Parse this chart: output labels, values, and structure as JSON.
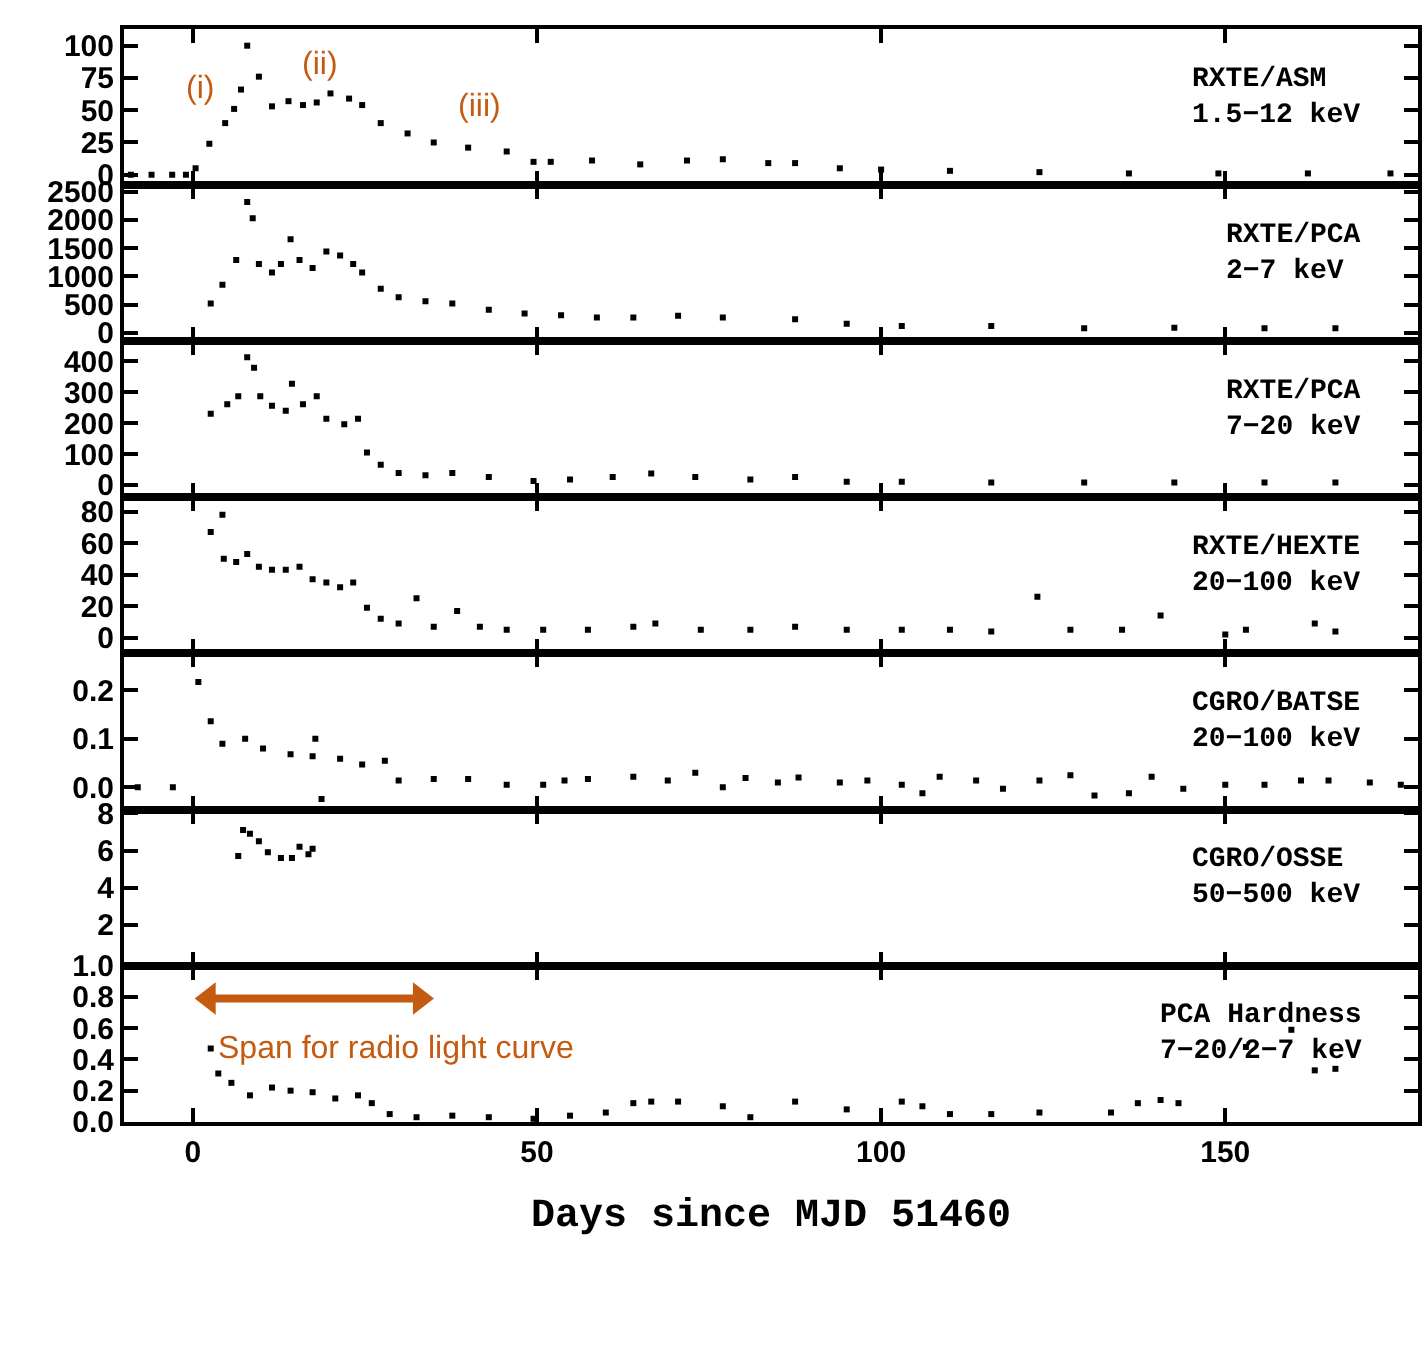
{
  "chart_data": [
    {
      "type": "scatter",
      "title": "RXTE/ASM\n1.5−12 keV",
      "marker": "square",
      "tick_labels": "y",
      "xlim": [
        -10,
        178
      ],
      "xticks": [
        0,
        50,
        100,
        150
      ],
      "ylim": [
        -8,
        113
      ],
      "yticks": [
        0,
        25,
        50,
        75,
        100
      ],
      "annotations": [
        "(i)",
        "(ii)",
        "(iii)"
      ],
      "series": [
        {
          "color": "#000000",
          "x": [
            -9,
            -6,
            -3,
            -1,
            0.4,
            2.4,
            4.7,
            6,
            7,
            7.9,
            9.6,
            11.5,
            13.9,
            16,
            18,
            20,
            22.7,
            24.6,
            27.3,
            31.2,
            35,
            40,
            45.6,
            49.5,
            52,
            58,
            65,
            71.8,
            77,
            83.6,
            87.5,
            94,
            100,
            110,
            123,
            136,
            149,
            162,
            174
          ],
          "values": [
            0,
            0,
            0,
            0,
            5,
            24,
            40,
            51,
            66,
            100,
            76,
            53,
            57,
            54,
            56,
            63,
            59,
            54,
            40,
            32,
            25,
            21,
            18,
            10,
            10,
            11,
            8,
            11,
            12,
            9,
            9,
            5,
            4,
            3,
            2,
            1,
            1,
            1,
            1
          ]
        }
      ]
    },
    {
      "type": "scatter",
      "title": "RXTE/PCA\n2−7 keV",
      "marker": "square",
      "tick_labels": "y",
      "xlim": [
        -10,
        178
      ],
      "xticks": [
        0,
        50,
        100,
        150
      ],
      "ylim": [
        -150,
        2620
      ],
      "yticks": [
        0,
        500,
        1000,
        1500,
        2000,
        2500
      ],
      "series": [
        {
          "color": "#000000",
          "x": [
            2.6,
            4.3,
            6.3,
            7.9,
            8.7,
            9.6,
            11.5,
            12.8,
            14.2,
            15.5,
            17.4,
            19.4,
            21.4,
            23.3,
            24.6,
            27.3,
            29.9,
            33.8,
            37.7,
            43,
            48.2,
            53.5,
            58.7,
            64,
            70.5,
            77,
            87.5,
            95,
            103,
            116,
            129.5,
            142.6,
            155.7,
            166
          ],
          "values": [
            520,
            850,
            1290,
            2320,
            2030,
            1220,
            1070,
            1220,
            1660,
            1290,
            1150,
            1440,
            1370,
            1220,
            1070,
            780,
            630,
            560,
            520,
            410,
            340,
            310,
            270,
            270,
            300,
            270,
            240,
            160,
            120,
            120,
            80,
            90,
            80,
            80
          ]
        }
      ]
    },
    {
      "type": "scatter",
      "title": "RXTE/PCA\n7−20 keV",
      "marker": "square",
      "tick_labels": "y",
      "xlim": [
        -10,
        178
      ],
      "xticks": [
        0,
        50,
        100,
        150
      ],
      "ylim": [
        -40,
        465
      ],
      "yticks": [
        0,
        100,
        200,
        300,
        400
      ],
      "series": [
        {
          "color": "#000000",
          "x": [
            2.6,
            5,
            6.6,
            7.9,
            8.9,
            9.8,
            11.5,
            13.5,
            14.4,
            16,
            18,
            19.4,
            22,
            24,
            25.3,
            27.3,
            29.9,
            33.8,
            37.7,
            43,
            49.5,
            54.8,
            61,
            66.6,
            73,
            81,
            87.5,
            95,
            103,
            116,
            129.5,
            142.6,
            155.7,
            166
          ],
          "values": [
            230,
            261,
            287,
            413,
            379,
            287,
            256,
            240,
            327,
            261,
            287,
            214,
            196,
            214,
            105,
            65,
            39,
            31,
            39,
            26,
            13,
            18,
            26,
            37,
            26,
            18,
            26,
            10,
            10,
            8,
            8,
            8,
            8,
            8
          ]
        }
      ]
    },
    {
      "type": "scatter",
      "title": "RXTE/HEXTE\n20−100 keV",
      "marker": "square",
      "tick_labels": "y",
      "xlim": [
        -10,
        178
      ],
      "xticks": [
        0,
        50,
        100,
        150
      ],
      "ylim": [
        -10,
        89
      ],
      "yticks": [
        0,
        20,
        40,
        60,
        80
      ],
      "series": [
        {
          "color": "#000000",
          "x": [
            2.6,
            4.3,
            4.5,
            6.3,
            7.9,
            9.6,
            11.5,
            13.5,
            15.5,
            17.4,
            19.4,
            21.4,
            23.3,
            25.3,
            27.3,
            29.9,
            32.5,
            35,
            38.4,
            41.7,
            45.6,
            50.9,
            57.4,
            64,
            67.2,
            73.8,
            81,
            87.5,
            95,
            103,
            110,
            116,
            122.7,
            127.5,
            135,
            140.6,
            150,
            153,
            163,
            166
          ],
          "values": [
            67,
            78,
            50,
            48,
            53,
            45,
            43,
            43,
            45,
            37,
            35,
            32,
            35,
            19,
            12,
            9,
            25,
            7,
            17,
            7,
            5,
            5,
            5,
            7,
            9,
            5,
            5,
            7,
            5,
            5,
            5,
            4,
            26,
            5,
            5,
            14,
            2,
            5,
            9,
            4
          ]
        }
      ]
    },
    {
      "type": "scatter",
      "title": "CGRO/BATSE\n20−100 keV",
      "marker": "square",
      "tick_labels": "y",
      "xlim": [
        -10,
        178
      ],
      "xticks": [
        0,
        50,
        100,
        150
      ],
      "ylim": [
        -0.046,
        0.276
      ],
      "yticks": [
        {
          "value": 0,
          "label": "0.0"
        },
        {
          "value": 0.1,
          "label": "0.1"
        },
        {
          "value": 0.2,
          "label": "0.2"
        }
      ],
      "series": [
        {
          "color": "#000000",
          "x": [
            -8,
            -2.9,
            0.8,
            2.6,
            4.3,
            7.6,
            10.2,
            14.2,
            17.4,
            17.8,
            18.7,
            21.4,
            24.6,
            27.9,
            29.9,
            35,
            40,
            45.6,
            50.9,
            54,
            57.4,
            64,
            69,
            73,
            77,
            80.3,
            85,
            88,
            94,
            98,
            103,
            106,
            108.5,
            113.8,
            117.7,
            123,
            127.5,
            131,
            136,
            139.3,
            143.9,
            150,
            155.7,
            161,
            165,
            171,
            175.5
          ],
          "values": [
            0.0,
            0.0,
            0.217,
            0.136,
            0.09,
            0.1,
            0.08,
            0.068,
            0.064,
            0.1,
            -0.024,
            0.059,
            0.047,
            0.055,
            0.014,
            0.017,
            0.017,
            0.005,
            0.005,
            0.014,
            0.017,
            0.022,
            0.014,
            0.03,
            0.0,
            0.019,
            0.01,
            0.02,
            0.01,
            0.014,
            0.005,
            -0.012,
            0.022,
            0.014,
            -0.003,
            0.014,
            0.025,
            -0.017,
            -0.012,
            0.022,
            -0.003,
            0.005,
            0.005,
            0.014,
            0.014,
            0.01,
            0.005
          ]
        }
      ]
    },
    {
      "type": "scatter",
      "title": "CGRO/OSSE\n50−500 keV",
      "marker": "square",
      "tick_labels": "y",
      "xlim": [
        -10,
        178
      ],
      "xticks": [
        0,
        50,
        100,
        150
      ],
      "ylim": [
        -0.2,
        8.2
      ],
      "yticks": [
        2,
        4,
        6,
        8
      ],
      "series": [
        {
          "color": "#000000",
          "x": [
            6.6,
            7.3,
            8.3,
            9.6,
            10.9,
            12.8,
            14.4,
            15.5,
            16.8,
            17.4
          ],
          "values": [
            5.7,
            7.1,
            6.9,
            6.5,
            5.9,
            5.6,
            5.6,
            6.2,
            5.8,
            6.1
          ]
        }
      ]
    },
    {
      "type": "scatter",
      "title": "PCA Hardness\n7−20/2−7 keV",
      "xlabel": "Days since MJD 51460",
      "marker": "square",
      "xlim": [
        -10,
        178
      ],
      "xticks": [
        0,
        50,
        100,
        150
      ],
      "ylim": [
        0,
        1
      ],
      "yticks": [
        {
          "value": 0,
          "label": "0.0"
        },
        {
          "value": 0.2,
          "label": "0.2"
        },
        {
          "value": 0.4,
          "label": "0.4"
        },
        {
          "value": 0.6,
          "label": "0.6"
        },
        {
          "value": 0.8,
          "label": "0.8"
        },
        {
          "value": 1,
          "label": "1.0"
        }
      ],
      "annotations": [
        "Span for radio light curve"
      ],
      "series": [
        {
          "color": "#000000",
          "x": [
            2.6,
            3.7,
            5.6,
            8.3,
            11.5,
            14.2,
            17.4,
            20.7,
            24,
            26,
            28.6,
            32.5,
            37.7,
            43,
            49.5,
            54.8,
            60,
            64,
            66.6,
            70.5,
            77,
            81,
            87.5,
            95,
            103,
            106,
            110,
            116,
            123,
            133.4,
            137.3,
            140.6,
            143.2,
            153,
            159.6,
            163,
            166
          ],
          "values": [
            0.47,
            0.31,
            0.25,
            0.17,
            0.22,
            0.2,
            0.19,
            0.15,
            0.17,
            0.12,
            0.05,
            0.03,
            0.04,
            0.03,
            0.02,
            0.04,
            0.06,
            0.12,
            0.13,
            0.13,
            0.1,
            0.03,
            0.13,
            0.08,
            0.13,
            0.1,
            0.05,
            0.05,
            0.06,
            0.06,
            0.12,
            0.14,
            0.12,
            0.48,
            0.59,
            0.33,
            0.34
          ]
        },
        {
          "type": "line",
          "marker": "triangle",
          "color": "#c55a11",
          "x": [
            2.3,
            33
          ],
          "values": [
            0.79,
            0.79
          ]
        }
      ]
    }
  ]
}
